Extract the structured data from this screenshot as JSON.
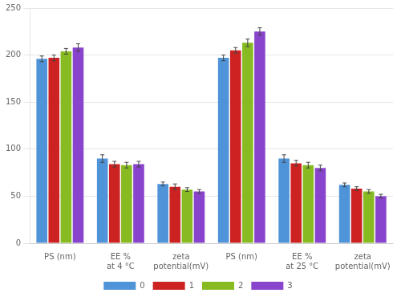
{
  "chart_data": {
    "type": "bar",
    "categories": [
      "PS (nm)",
      "EE %",
      "zeta potential(mV)",
      "PS (nm)",
      "EE %",
      "zeta potential(mV)"
    ],
    "series": [
      {
        "name": "0",
        "color": "#4f93d8",
        "values": [
          196,
          90,
          63,
          197,
          90,
          62
        ],
        "errors": [
          3,
          4,
          2,
          3,
          4,
          2
        ]
      },
      {
        "name": "1",
        "color": "#cc2222",
        "values": [
          197,
          84,
          60,
          205,
          85,
          58
        ],
        "errors": [
          3,
          3,
          3,
          3,
          3,
          2
        ]
      },
      {
        "name": "2",
        "color": "#88bb22",
        "values": [
          204,
          83,
          57,
          213,
          83,
          55
        ],
        "errors": [
          3,
          3,
          2,
          4,
          3,
          2
        ]
      },
      {
        "name": "3",
        "color": "#8844cc",
        "values": [
          208,
          84,
          55,
          225,
          80,
          50
        ],
        "errors": [
          4,
          3,
          2,
          4,
          3,
          2
        ]
      }
    ],
    "annotations": [
      {
        "text": "at 4 °C",
        "x": 1
      },
      {
        "text": "at 25 °C",
        "x": 4
      }
    ],
    "ylim": [
      0,
      250
    ],
    "yticks": [
      0,
      50,
      100,
      150,
      200,
      250
    ],
    "grid": true,
    "legend": "bottom"
  }
}
